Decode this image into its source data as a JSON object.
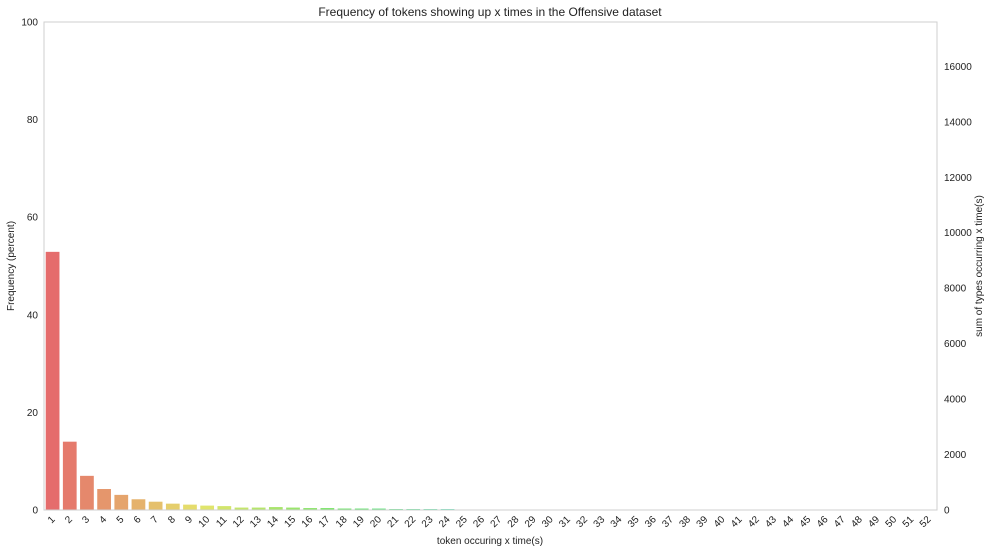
{
  "chart_data": {
    "type": "bar",
    "title": "Frequency of tokens showing up x times in the Offensive dataset",
    "xlabel": "token occuring x time(s)",
    "ylabel": "Frequency (percent)",
    "y2label": "sum of types occurring x time(s)",
    "ylim": [
      0,
      100
    ],
    "y2lim": [
      0,
      17600
    ],
    "yticks": [
      0,
      20,
      40,
      60,
      80,
      100
    ],
    "y2ticks": [
      0,
      2000,
      4000,
      6000,
      8000,
      10000,
      12000,
      14000,
      16000
    ],
    "grid": false,
    "categories": [
      "1",
      "2",
      "3",
      "4",
      "5",
      "6",
      "7",
      "8",
      "9",
      "10",
      "11",
      "12",
      "13",
      "14",
      "15",
      "16",
      "17",
      "18",
      "19",
      "20",
      "21",
      "22",
      "23",
      "24",
      "25",
      "26",
      "27",
      "28",
      "29",
      "30",
      "31",
      "32",
      "33",
      "34",
      "35",
      "36",
      "37",
      "38",
      "39",
      "40",
      "41",
      "42",
      "43",
      "44",
      "45",
      "46",
      "47",
      "48",
      "49",
      "50",
      "51",
      "52"
    ],
    "values": [
      52.9,
      14.0,
      7.0,
      4.3,
      3.1,
      2.2,
      1.7,
      1.3,
      1.1,
      0.9,
      0.8,
      0.5,
      0.5,
      0.6,
      0.5,
      0.4,
      0.4,
      0.3,
      0.3,
      0.3,
      0.2,
      0.2,
      0.2,
      0.2,
      0.1,
      0.1,
      0.1,
      0.1,
      0.1,
      0.1,
      0.1,
      0.1,
      0.1,
      0.1,
      0.1,
      0.1,
      0.1,
      0.1,
      0.1,
      0.1,
      0.1,
      0.1,
      0.1,
      0.1,
      0.1,
      0.1,
      0.1,
      0.1,
      0.1,
      0.1,
      0.1,
      0.1
    ]
  }
}
